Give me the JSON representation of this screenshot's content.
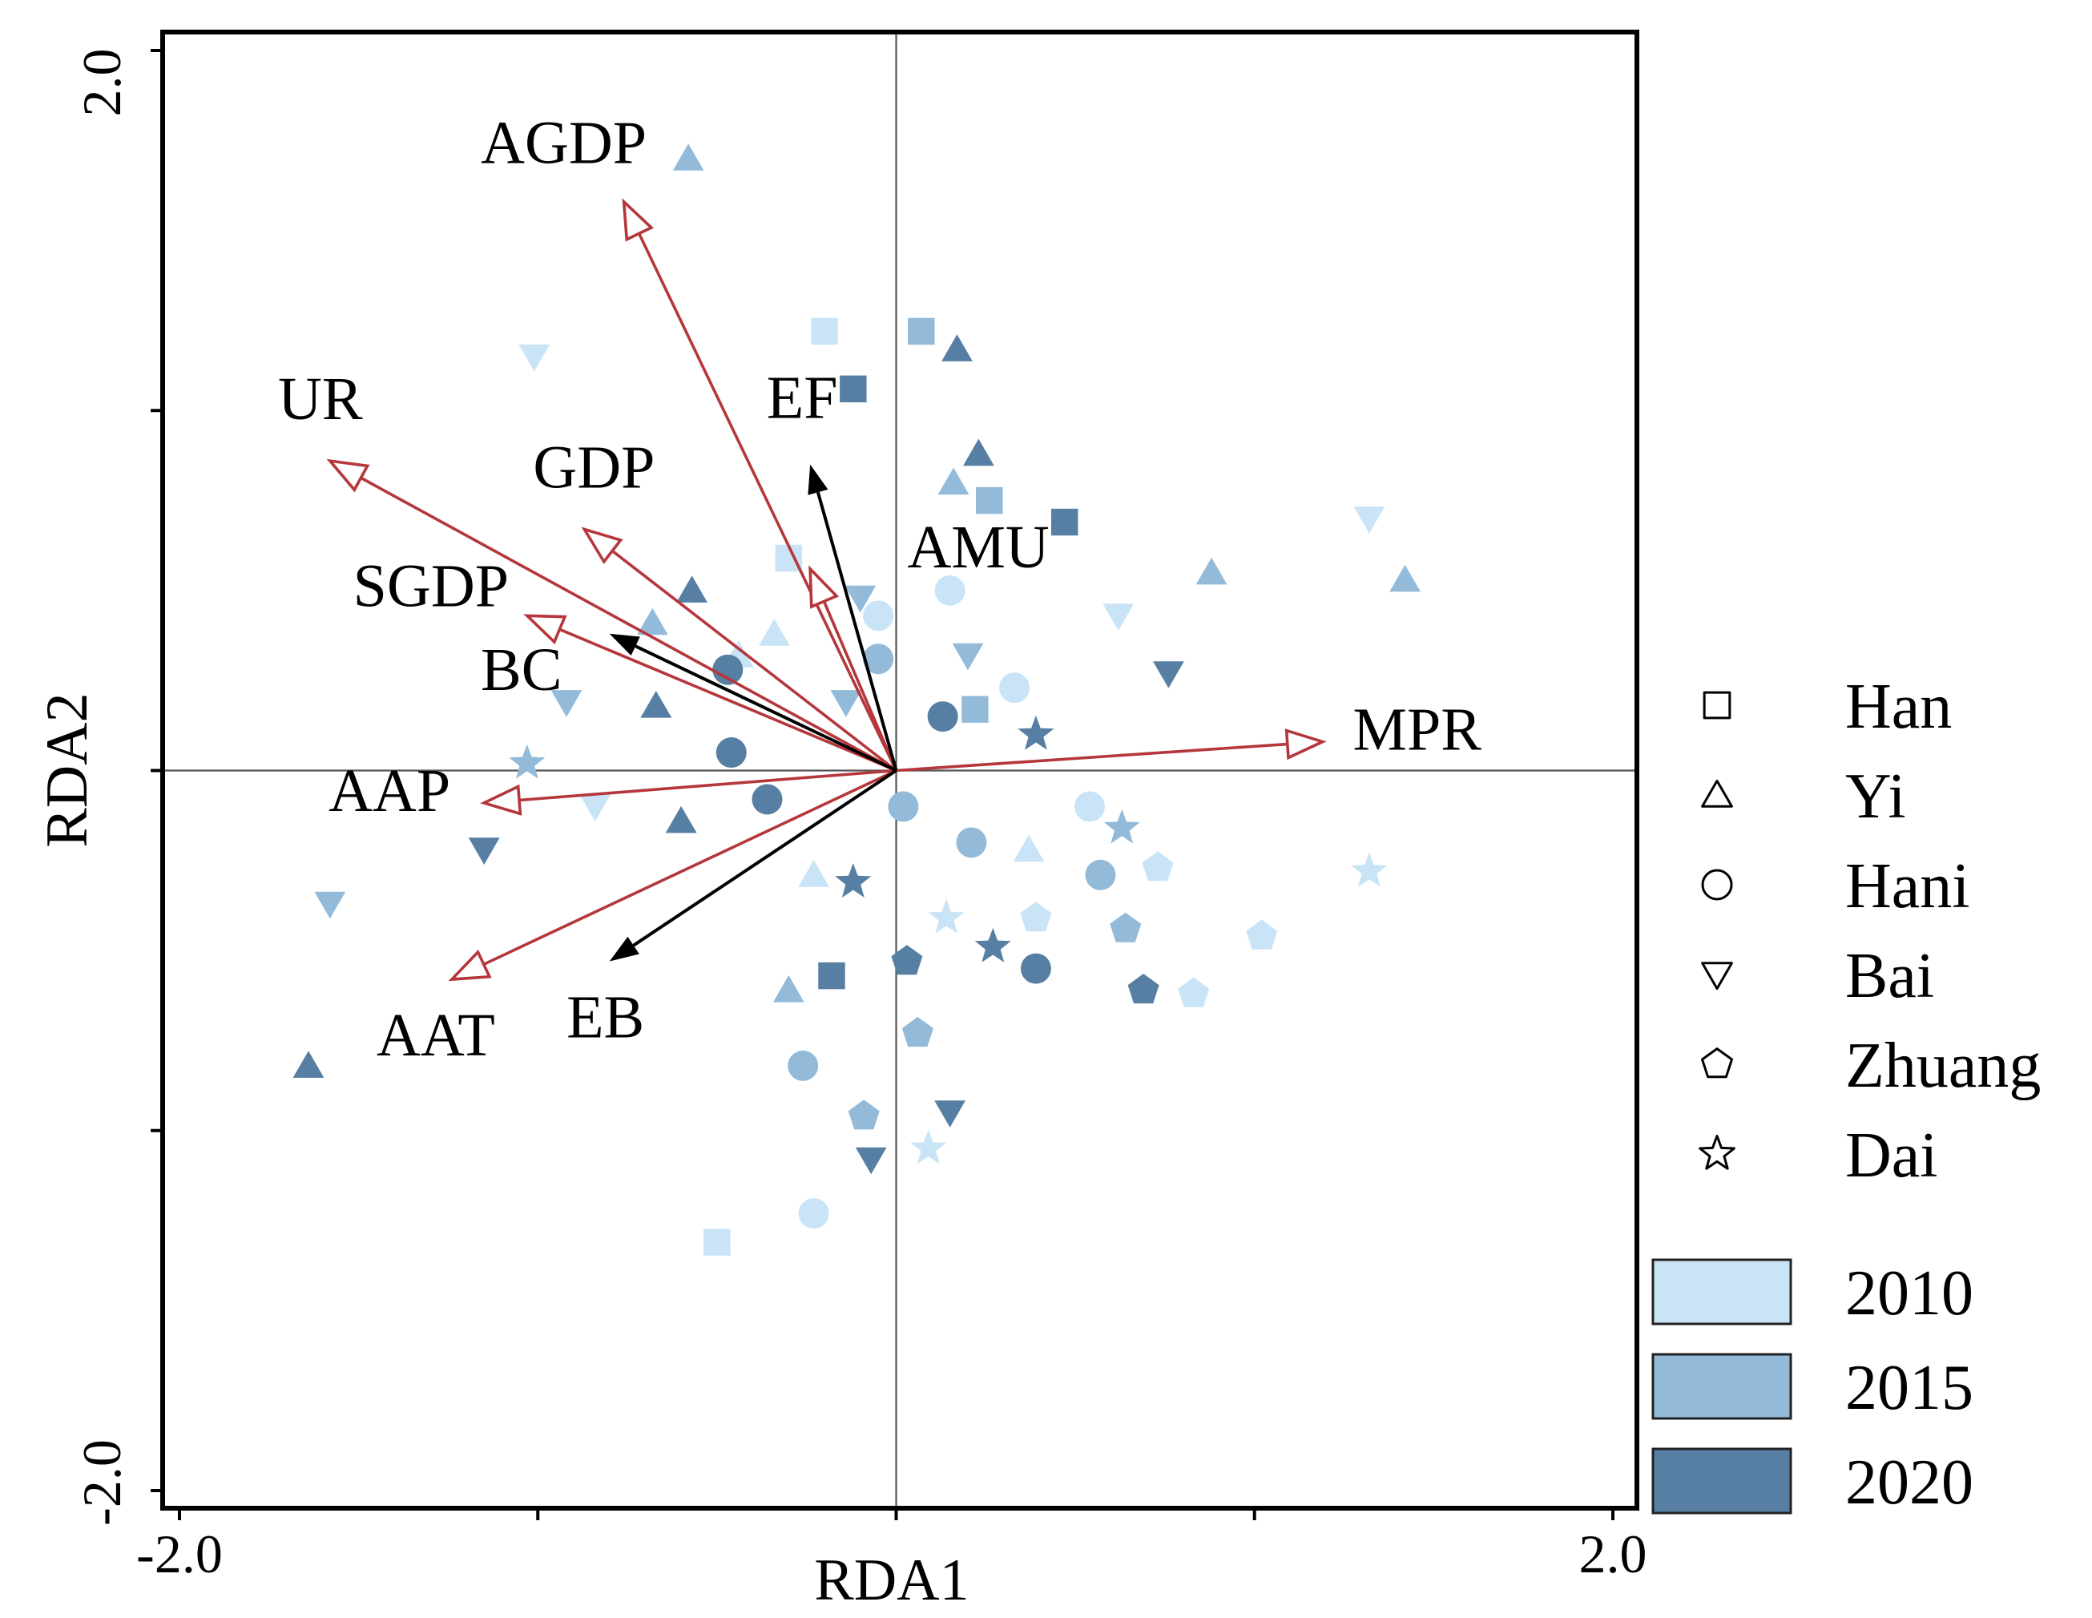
{
  "chart_data": {
    "type": "scatter",
    "subtype": "rda_biplot",
    "xlabel": "RDA1",
    "ylabel": "RDA2",
    "xlim": [
      -2.0,
      2.0
    ],
    "ylim": [
      -2.0,
      2.0
    ],
    "x_tick_labels": [
      {
        "value": -2.0,
        "label": "-2.0"
      },
      {
        "value": 2.0,
        "label": "2.0"
      }
    ],
    "x_minor_ticks": [
      -1.0,
      0.0,
      1.0
    ],
    "y_tick_labels": [
      {
        "value": 2.0,
        "label": "2.0"
      },
      {
        "value": -2.0,
        "label": "-2.0"
      }
    ],
    "y_minor_ticks": [
      1.0,
      0.0,
      -1.0
    ],
    "year_colors": {
      "2010": "#c9e4f6",
      "2015": "#93bbd9",
      "2020": "#567fa3"
    },
    "vector_colors": {
      "explanatory": "#b5373c",
      "response": "#000000"
    },
    "vectors": [
      {
        "name": "AGDP",
        "kind": "explanatory",
        "x": -0.76,
        "y": 1.58
      },
      {
        "name": "UR",
        "kind": "explanatory",
        "x": -1.58,
        "y": 0.86
      },
      {
        "name": "GDP",
        "kind": "explanatory",
        "x": -0.87,
        "y": 0.67
      },
      {
        "name": "SGDP",
        "kind": "explanatory",
        "x": -1.03,
        "y": 0.43
      },
      {
        "name": "AMU",
        "kind": "explanatory",
        "x": -0.24,
        "y": 0.56
      },
      {
        "name": "AAP",
        "kind": "explanatory",
        "x": -1.15,
        "y": -0.09
      },
      {
        "name": "AAT",
        "kind": "explanatory",
        "x": -1.24,
        "y": -0.58
      },
      {
        "name": "MPR",
        "kind": "explanatory",
        "x": 1.19,
        "y": 0.08
      },
      {
        "name": "EF",
        "kind": "response",
        "x": -0.24,
        "y": 0.85
      },
      {
        "name": "BC",
        "kind": "response",
        "x": -0.8,
        "y": 0.38
      },
      {
        "name": "EB",
        "kind": "response",
        "x": -0.8,
        "y": -0.53
      }
    ],
    "points": [
      {
        "group": "Han",
        "year": "2010",
        "x": -0.2,
        "y": 1.22
      },
      {
        "group": "Han",
        "year": "2010",
        "x": -0.3,
        "y": 0.59
      },
      {
        "group": "Han",
        "year": "2010",
        "x": -0.5,
        "y": -1.31
      },
      {
        "group": "Han",
        "year": "2015",
        "x": 0.07,
        "y": 1.22
      },
      {
        "group": "Han",
        "year": "2015",
        "x": 0.26,
        "y": 0.75
      },
      {
        "group": "Han",
        "year": "2015",
        "x": 0.22,
        "y": 0.17
      },
      {
        "group": "Han",
        "year": "2020",
        "x": -0.12,
        "y": 1.06
      },
      {
        "group": "Han",
        "year": "2020",
        "x": 0.47,
        "y": 0.69
      },
      {
        "group": "Han",
        "year": "2020",
        "x": -0.18,
        "y": -0.57
      },
      {
        "group": "Yi",
        "year": "2010",
        "x": -0.34,
        "y": 0.38
      },
      {
        "group": "Yi",
        "year": "2010",
        "x": -0.44,
        "y": 0.32
      },
      {
        "group": "Yi",
        "year": "2010",
        "x": -0.23,
        "y": -0.29
      },
      {
        "group": "Yi",
        "year": "2010",
        "x": 0.37,
        "y": -0.22
      },
      {
        "group": "Yi",
        "year": "2015",
        "x": -0.58,
        "y": 1.7
      },
      {
        "group": "Yi",
        "year": "2015",
        "x": 0.16,
        "y": 0.8
      },
      {
        "group": "Yi",
        "year": "2015",
        "x": 0.88,
        "y": 0.55
      },
      {
        "group": "Yi",
        "year": "2015",
        "x": 1.42,
        "y": 0.53
      },
      {
        "group": "Yi",
        "year": "2015",
        "x": -0.68,
        "y": 0.41
      },
      {
        "group": "Yi",
        "year": "2015",
        "x": -0.3,
        "y": -0.61
      },
      {
        "group": "Yi",
        "year": "2020",
        "x": 0.17,
        "y": 1.17
      },
      {
        "group": "Yi",
        "year": "2020",
        "x": 0.23,
        "y": 0.88
      },
      {
        "group": "Yi",
        "year": "2020",
        "x": -0.57,
        "y": 0.5
      },
      {
        "group": "Yi",
        "year": "2020",
        "x": -0.67,
        "y": 0.18
      },
      {
        "group": "Yi",
        "year": "2020",
        "x": -0.6,
        "y": -0.14
      },
      {
        "group": "Yi",
        "year": "2020",
        "x": -1.64,
        "y": -0.82
      },
      {
        "group": "Hani",
        "year": "2010",
        "x": -0.05,
        "y": 0.43
      },
      {
        "group": "Hani",
        "year": "2010",
        "x": 0.15,
        "y": 0.5
      },
      {
        "group": "Hani",
        "year": "2010",
        "x": 0.33,
        "y": 0.23
      },
      {
        "group": "Hani",
        "year": "2010",
        "x": 0.54,
        "y": -0.1
      },
      {
        "group": "Hani",
        "year": "2010",
        "x": -0.23,
        "y": -1.23
      },
      {
        "group": "Hani",
        "year": "2015",
        "x": -0.05,
        "y": 0.31
      },
      {
        "group": "Hani",
        "year": "2015",
        "x": 0.02,
        "y": -0.1
      },
      {
        "group": "Hani",
        "year": "2015",
        "x": 0.21,
        "y": -0.2
      },
      {
        "group": "Hani",
        "year": "2015",
        "x": 0.57,
        "y": -0.29
      },
      {
        "group": "Hani",
        "year": "2015",
        "x": -0.26,
        "y": -0.82
      },
      {
        "group": "Hani",
        "year": "2020",
        "x": -0.47,
        "y": 0.28
      },
      {
        "group": "Hani",
        "year": "2020",
        "x": -0.46,
        "y": 0.05
      },
      {
        "group": "Hani",
        "year": "2020",
        "x": -0.36,
        "y": -0.08
      },
      {
        "group": "Hani",
        "year": "2020",
        "x": 0.13,
        "y": 0.15
      },
      {
        "group": "Hani",
        "year": "2020",
        "x": 0.39,
        "y": -0.55
      },
      {
        "group": "Bai",
        "year": "2010",
        "x": -1.01,
        "y": 1.15
      },
      {
        "group": "Bai",
        "year": "2010",
        "x": 0.62,
        "y": 0.43
      },
      {
        "group": "Bai",
        "year": "2010",
        "x": 1.32,
        "y": 0.7
      },
      {
        "group": "Bai",
        "year": "2010",
        "x": -0.84,
        "y": -0.1
      },
      {
        "group": "Bai",
        "year": "2015",
        "x": -0.92,
        "y": 0.19
      },
      {
        "group": "Bai",
        "year": "2015",
        "x": -0.1,
        "y": 0.48
      },
      {
        "group": "Bai",
        "year": "2015",
        "x": -0.14,
        "y": 0.19
      },
      {
        "group": "Bai",
        "year": "2015",
        "x": 0.2,
        "y": 0.32
      },
      {
        "group": "Bai",
        "year": "2015",
        "x": -1.58,
        "y": -0.37
      },
      {
        "group": "Bai",
        "year": "2020",
        "x": 0.76,
        "y": 0.27
      },
      {
        "group": "Bai",
        "year": "2020",
        "x": -1.15,
        "y": -0.22
      },
      {
        "group": "Bai",
        "year": "2020",
        "x": 0.15,
        "y": -0.95
      },
      {
        "group": "Bai",
        "year": "2020",
        "x": -0.07,
        "y": -1.08
      },
      {
        "group": "Zhuang",
        "year": "2010",
        "x": 0.73,
        "y": -0.27
      },
      {
        "group": "Zhuang",
        "year": "2010",
        "x": 0.39,
        "y": -0.41
      },
      {
        "group": "Zhuang",
        "year": "2010",
        "x": 1.02,
        "y": -0.46
      },
      {
        "group": "Zhuang",
        "year": "2010",
        "x": 0.83,
        "y": -0.62
      },
      {
        "group": "Zhuang",
        "year": "2015",
        "x": 0.64,
        "y": -0.44
      },
      {
        "group": "Zhuang",
        "year": "2015",
        "x": 0.06,
        "y": -0.73
      },
      {
        "group": "Zhuang",
        "year": "2015",
        "x": -0.09,
        "y": -0.96
      },
      {
        "group": "Zhuang",
        "year": "2020",
        "x": 0.03,
        "y": -0.53
      },
      {
        "group": "Zhuang",
        "year": "2020",
        "x": 0.69,
        "y": -0.61
      },
      {
        "group": "Dai",
        "year": "2010",
        "x": 1.32,
        "y": -0.28
      },
      {
        "group": "Dai",
        "year": "2010",
        "x": 0.14,
        "y": -0.41
      },
      {
        "group": "Dai",
        "year": "2010",
        "x": 0.09,
        "y": -1.05
      },
      {
        "group": "Dai",
        "year": "2015",
        "x": -1.03,
        "y": 0.02
      },
      {
        "group": "Dai",
        "year": "2015",
        "x": 0.63,
        "y": -0.16
      },
      {
        "group": "Dai",
        "year": "2020",
        "x": 0.39,
        "y": 0.1
      },
      {
        "group": "Dai",
        "year": "2020",
        "x": -0.12,
        "y": -0.31
      },
      {
        "group": "Dai",
        "year": "2020",
        "x": 0.27,
        "y": -0.49
      }
    ],
    "legend_position": "right",
    "legend_shapes": [
      {
        "name": "Han",
        "shape": "square"
      },
      {
        "name": "Yi",
        "shape": "triangle"
      },
      {
        "name": "Hani",
        "shape": "circle"
      },
      {
        "name": "Bai",
        "shape": "inverted-triangle"
      },
      {
        "name": "Zhuang",
        "shape": "pentagon"
      },
      {
        "name": "Dai",
        "shape": "star"
      }
    ],
    "legend_years": [
      "2010",
      "2015",
      "2020"
    ]
  }
}
